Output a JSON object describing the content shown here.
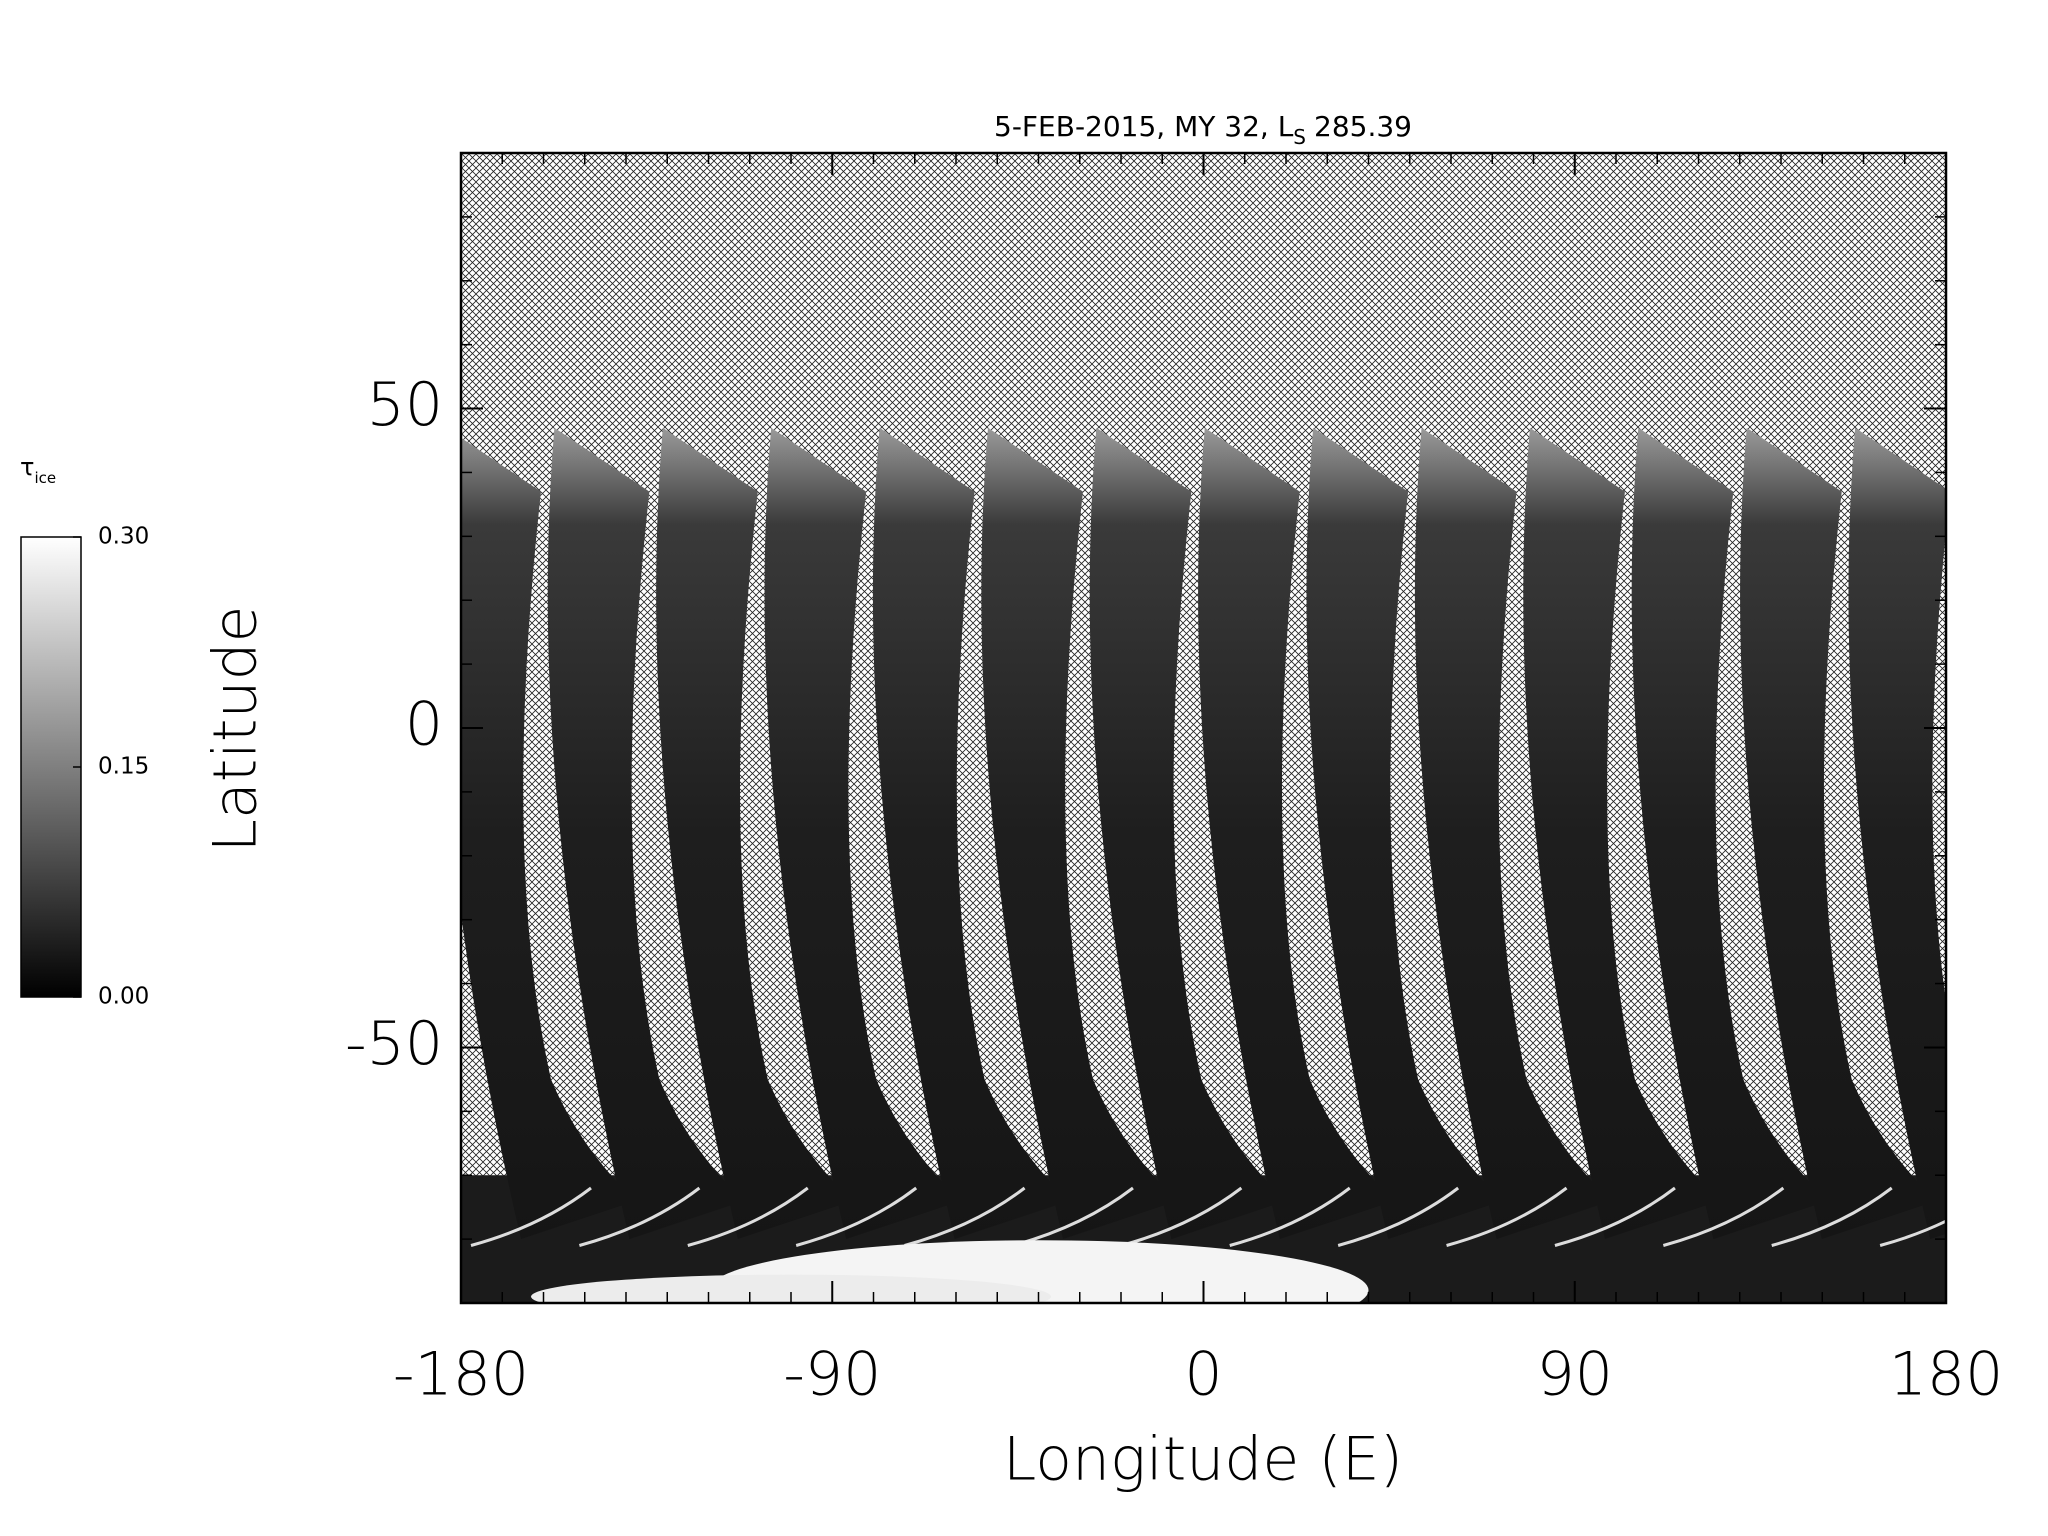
{
  "chart_data": {
    "type": "image-map",
    "title": "5-FEB-2015, MY 32,  L",
    "title_subscript": "S",
    "title_suffix": "285.39",
    "x_label": "Longitude (E)",
    "y_label": "Latitude",
    "xlim": [
      -180,
      180
    ],
    "ylim": [
      -90,
      90
    ],
    "xticks": [
      -180,
      -90,
      0,
      90,
      180
    ],
    "yticks": [
      -50,
      0,
      50
    ],
    "xminorticks": [
      -170,
      -160,
      -150,
      -140,
      -130,
      -120,
      -110,
      -100,
      -80,
      -70,
      -60,
      -50,
      -40,
      -30,
      -20,
      -10,
      10,
      20,
      30,
      40,
      50,
      60,
      70,
      80,
      100,
      110,
      120,
      130,
      140,
      150,
      160,
      170
    ],
    "yminorticks": [
      -80,
      -70,
      -60,
      -40,
      -30,
      -20,
      -10,
      10,
      20,
      30,
      40,
      60,
      70,
      80
    ],
    "colorbar": {
      "label": "τ",
      "label_subscript": "ice",
      "clim": [
        0,
        0.3
      ],
      "ticks": [
        {
          "value": 0,
          "label": "0.00"
        },
        {
          "value": 0.15,
          "label": "0.15"
        },
        {
          "value": 0.3,
          "label": "0.30"
        }
      ]
    }
  }
}
